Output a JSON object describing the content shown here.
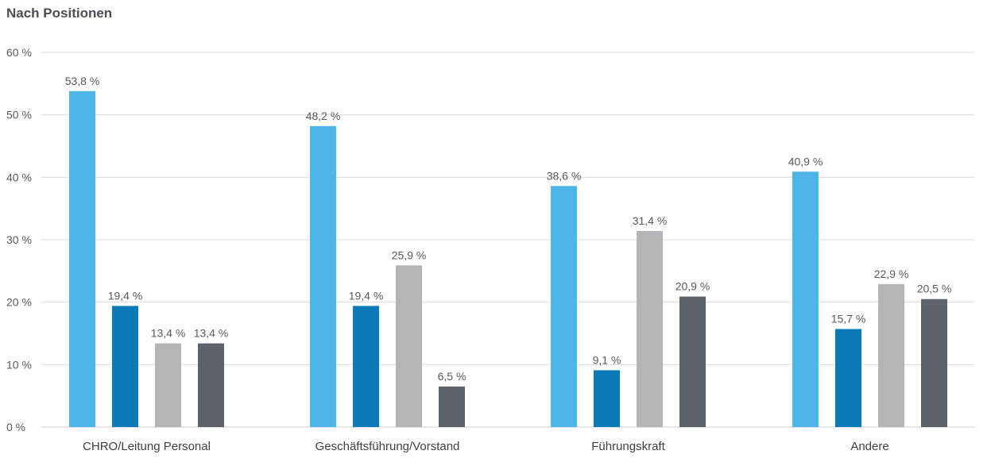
{
  "chart_data": {
    "type": "bar",
    "title": "Nach Positionen",
    "categories": [
      "CHRO/Leitung Personal",
      "Geschäftsführung/Vorstand",
      "Führungskraft",
      "Andere"
    ],
    "series": [
      {
        "color": "#4db6e6",
        "values": [
          53.8,
          48.2,
          38.6,
          40.9
        ],
        "labels": [
          "53,8 %",
          "48,2 %",
          "38,6 %",
          "40,9 %"
        ]
      },
      {
        "color": "#0a7bb8",
        "values": [
          19.4,
          19.4,
          9.1,
          15.7
        ],
        "labels": [
          "19,4 %",
          "19,4 %",
          "9,1 %",
          "15,7 %"
        ]
      },
      {
        "color": "#b3b5b8",
        "values": [
          13.4,
          25.9,
          31.4,
          22.9
        ],
        "labels": [
          "13,4 %",
          "25,9 %",
          "31,4 %",
          "22,9 %"
        ]
      },
      {
        "color": "#5e636a",
        "values": [
          13.4,
          6.5,
          20.9,
          20.5
        ],
        "labels": [
          "13,4 %",
          "6,5 %",
          "20,9 %",
          "20,5 %"
        ]
      }
    ],
    "ylim": [
      0,
      60
    ],
    "yticks": [
      0,
      10,
      20,
      30,
      40,
      50,
      60
    ],
    "ytick_labels": [
      "0 %",
      "10 %",
      "20 %",
      "30 %",
      "40 %",
      "50 %",
      "60 %"
    ],
    "grid": true,
    "legend": "none"
  }
}
